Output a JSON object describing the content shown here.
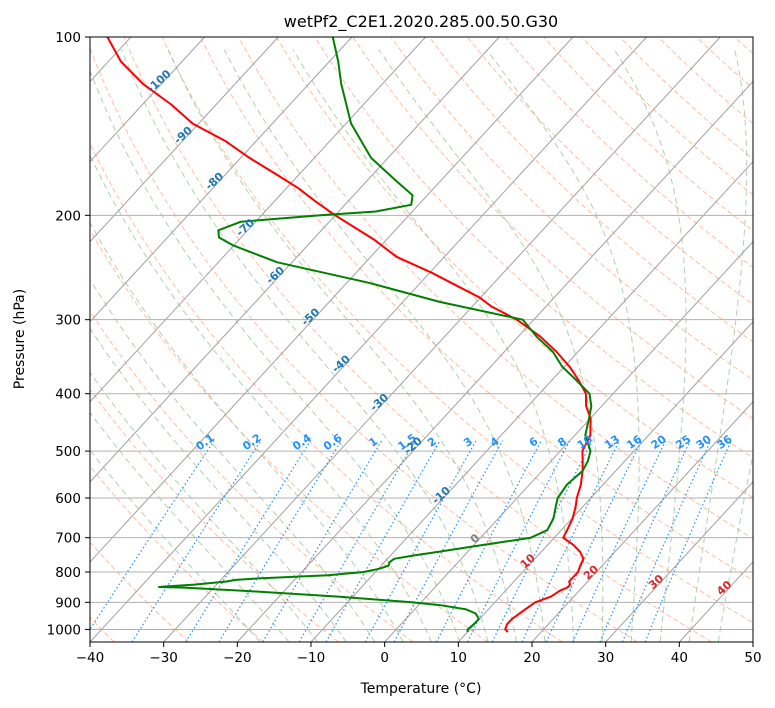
{
  "chart_data": {
    "type": "line",
    "subtype": "skew-t log-p",
    "title": "wetPf2_C2E1.2020.285.00.50.G30",
    "xlabel": "Temperature (°C)",
    "ylabel": "Pressure (hPa)",
    "xlim": [
      -40,
      50
    ],
    "ylim": [
      1050,
      100
    ],
    "y_scale": "log",
    "grid": true,
    "x_ticks": [
      -40,
      -30,
      -20,
      -10,
      0,
      10,
      20,
      30,
      40,
      50
    ],
    "y_ticks": [
      100,
      200,
      300,
      400,
      500,
      600,
      700,
      800,
      900,
      1000
    ],
    "colors": {
      "temperature": "#ff0000",
      "dewpoint": "#008000",
      "isotherm_label": "#1f77b4",
      "mixing_ratio": "#1e90ff",
      "dry_adiabat": "#ffa07a",
      "moist_adiabat": "#8fbc8f",
      "wet_bulb_label": "#d62728",
      "grid": "#b0b0b0"
    },
    "isotherm_labels": [
      -100,
      -90,
      -80,
      -70,
      -60,
      -50,
      -40,
      -30,
      -20,
      -10,
      0,
      10,
      20,
      30,
      40
    ],
    "mixing_ratio_labels": [
      "0.1",
      "0.2",
      "0.4",
      "0.6",
      "1",
      "1.5",
      "2",
      "3",
      "4",
      "6",
      "8",
      "10",
      "13",
      "16",
      "20",
      "25",
      "30",
      "36"
    ],
    "series": [
      {
        "name": "Temperature",
        "pressure": [
          1010,
          1000,
          980,
          960,
          930,
          900,
          880,
          860,
          850,
          840,
          830,
          800,
          780,
          760,
          740,
          720,
          700,
          680,
          650,
          620,
          600,
          570,
          540,
          520,
          500,
          470,
          440,
          420,
          400,
          380,
          360,
          340,
          320,
          300,
          285,
          275,
          265,
          250,
          235,
          220,
          210,
          200,
          190,
          180,
          170,
          160,
          150,
          140,
          130,
          120,
          110,
          100
        ],
        "temperature": [
          15.5,
          14.8,
          14.4,
          14.4,
          14.9,
          15.5,
          16.9,
          17.4,
          18.0,
          18.0,
          17.5,
          17.5,
          17.0,
          16.6,
          15.3,
          13.5,
          11.2,
          10.8,
          10.1,
          9.0,
          8.1,
          7.0,
          5.5,
          4.3,
          3.0,
          2.1,
          0.0,
          -2.1,
          -3.7,
          -6.3,
          -9.3,
          -12.9,
          -17.1,
          -22.3,
          -27.4,
          -30.2,
          -33.9,
          -39.7,
          -46.5,
          -51.6,
          -55.7,
          -60.0,
          -64.2,
          -68.4,
          -73.4,
          -78.8,
          -84.1,
          -90.8,
          -96.1,
          -102.5,
          -108.3,
          -113.2
        ]
      },
      {
        "name": "Dewpoint",
        "pressure": [
          1010,
          1000,
          980,
          960,
          940,
          925,
          910,
          900,
          880,
          860,
          850,
          848,
          846,
          840,
          830,
          825,
          820,
          810,
          800,
          790,
          780,
          770,
          760,
          750,
          740,
          730,
          720,
          710,
          700,
          680,
          650,
          620,
          600,
          570,
          540,
          520,
          500,
          470,
          440,
          420,
          400,
          380,
          360,
          340,
          320,
          300,
          280,
          260,
          240,
          225,
          218,
          212,
          205,
          200,
          197,
          192,
          185,
          175,
          160,
          140,
          120,
          110,
          100
        ],
        "temperature": [
          10.0,
          9.7,
          9.9,
          9.9,
          8.8,
          7.0,
          3.0,
          -1.3,
          -12.0,
          -26.0,
          -34.0,
          -37.5,
          -36.5,
          -33.0,
          -29.0,
          -28.0,
          -25.0,
          -16.0,
          -11.6,
          -9.9,
          -9.0,
          -9.3,
          -9.1,
          -6.8,
          -4.1,
          -1.5,
          1.3,
          4.1,
          6.8,
          8.1,
          7.5,
          6.3,
          5.5,
          5.1,
          5.5,
          5.0,
          4.1,
          1.4,
          -0.2,
          -1.4,
          -3.2,
          -6.6,
          -10.3,
          -13.4,
          -17.6,
          -21.5,
          -35.0,
          -47.0,
          -62.0,
          -70.0,
          -73.0,
          -74.0,
          -72.0,
          -62.0,
          -55.0,
          -51.0,
          -52.0,
          -56.0,
          -62.3,
          -69.3,
          -75.6,
          -78.8,
          -82.6
        ]
      }
    ]
  }
}
